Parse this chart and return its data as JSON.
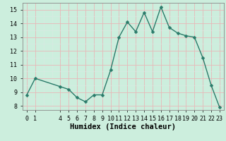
{
  "x": [
    0,
    1,
    4,
    5,
    6,
    7,
    8,
    9,
    10,
    11,
    12,
    13,
    14,
    15,
    16,
    17,
    18,
    19,
    20,
    21,
    22,
    23
  ],
  "y": [
    8.8,
    10.0,
    9.4,
    9.2,
    8.6,
    8.3,
    8.8,
    8.8,
    10.6,
    13.0,
    14.1,
    13.4,
    14.8,
    13.4,
    15.2,
    13.7,
    13.3,
    13.1,
    13.0,
    11.5,
    9.5,
    7.9
  ],
  "line_color": "#2a7b6a",
  "marker": "D",
  "marker_size": 2.5,
  "bg_color": "#cceedd",
  "grid_color_major": "#c0c0b8",
  "grid_color_minor": "#dde8e0",
  "xlabel": "Humidex (Indice chaleur)",
  "ylabel": "",
  "xlim": [
    -0.5,
    23.5
  ],
  "ylim": [
    7.7,
    15.5
  ],
  "xticks": [
    0,
    1,
    4,
    5,
    6,
    7,
    8,
    9,
    10,
    11,
    12,
    13,
    14,
    15,
    16,
    17,
    18,
    19,
    20,
    21,
    22,
    23
  ],
  "yticks": [
    8,
    9,
    10,
    11,
    12,
    13,
    14,
    15
  ],
  "tick_labelsize": 6.0,
  "xlabel_fontsize": 7.5,
  "line_width": 1.0,
  "spine_color": "#888888"
}
